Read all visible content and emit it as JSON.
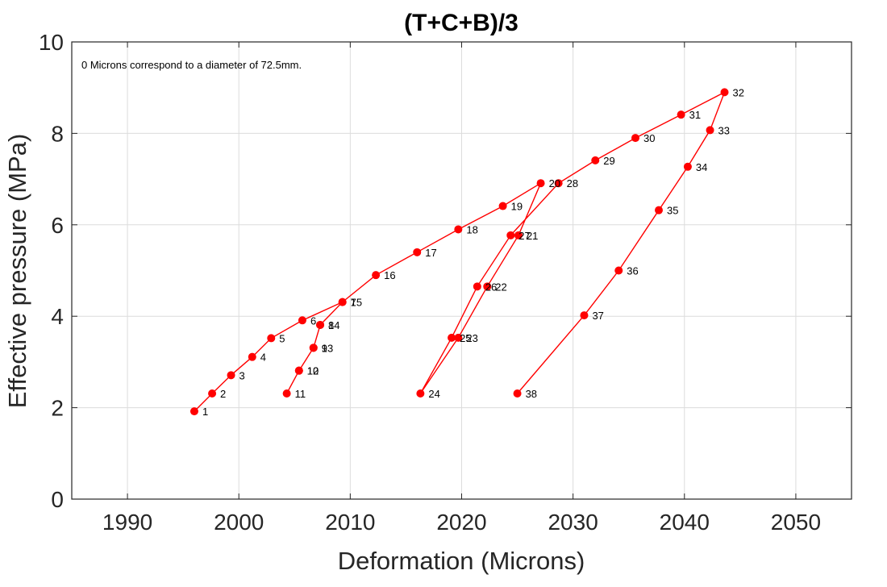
{
  "chart_data": {
    "type": "line",
    "title": "(T+C+B)/3",
    "xlabel": "Deformation (Microns)",
    "ylabel": "Effective pressure (MPa)",
    "xlim": [
      1985,
      2055
    ],
    "ylim": [
      0,
      10
    ],
    "xticks": [
      1990,
      2000,
      2010,
      2020,
      2030,
      2040,
      2050
    ],
    "yticks": [
      0,
      2,
      4,
      6,
      8,
      10
    ],
    "grid": true,
    "annotation": "0 Microns correspond to a diameter of 72.5mm.",
    "series_color": "#ff0000",
    "points": [
      {
        "label": "1",
        "x": 1996.0,
        "y": 1.92
      },
      {
        "label": "2",
        "x": 1997.6,
        "y": 2.31
      },
      {
        "label": "3",
        "x": 1999.3,
        "y": 2.71
      },
      {
        "label": "4",
        "x": 2001.2,
        "y": 3.11
      },
      {
        "label": "5",
        "x": 2002.9,
        "y": 3.52
      },
      {
        "label": "6",
        "x": 2005.7,
        "y": 3.91
      },
      {
        "label": "7",
        "x": 2009.3,
        "y": 4.31
      },
      {
        "label": "8",
        "x": 2007.3,
        "y": 3.81
      },
      {
        "label": "9",
        "x": 2006.7,
        "y": 3.31
      },
      {
        "label": "10",
        "x": 2005.4,
        "y": 2.81
      },
      {
        "label": "11",
        "x": 2004.3,
        "y": 2.31
      },
      {
        "label": "12",
        "x": 2005.4,
        "y": 2.81
      },
      {
        "label": "13",
        "x": 2006.7,
        "y": 3.31
      },
      {
        "label": "14",
        "x": 2007.3,
        "y": 3.81
      },
      {
        "label": "15",
        "x": 2009.3,
        "y": 4.31
      },
      {
        "label": "16",
        "x": 2012.3,
        "y": 4.9
      },
      {
        "label": "17",
        "x": 2016.0,
        "y": 5.4
      },
      {
        "label": "18",
        "x": 2019.7,
        "y": 5.9
      },
      {
        "label": "19",
        "x": 2023.7,
        "y": 6.41
      },
      {
        "label": "20",
        "x": 2027.1,
        "y": 6.91
      },
      {
        "label": "21",
        "x": 2025.1,
        "y": 5.77
      },
      {
        "label": "22",
        "x": 2022.3,
        "y": 4.65
      },
      {
        "label": "23",
        "x": 2019.7,
        "y": 3.53
      },
      {
        "label": "24",
        "x": 2016.3,
        "y": 2.31
      },
      {
        "label": "25",
        "x": 2019.1,
        "y": 3.53
      },
      {
        "label": "26",
        "x": 2021.4,
        "y": 4.65
      },
      {
        "label": "27",
        "x": 2024.4,
        "y": 5.77
      },
      {
        "label": "28",
        "x": 2028.7,
        "y": 6.91
      },
      {
        "label": "29",
        "x": 2032.0,
        "y": 7.41
      },
      {
        "label": "30",
        "x": 2035.6,
        "y": 7.9
      },
      {
        "label": "31",
        "x": 2039.7,
        "y": 8.41
      },
      {
        "label": "32",
        "x": 2043.6,
        "y": 8.9
      },
      {
        "label": "33",
        "x": 2042.3,
        "y": 8.07
      },
      {
        "label": "34",
        "x": 2040.3,
        "y": 7.27
      },
      {
        "label": "35",
        "x": 2037.7,
        "y": 6.32
      },
      {
        "label": "36",
        "x": 2034.1,
        "y": 5.0
      },
      {
        "label": "37",
        "x": 2031.0,
        "y": 4.02
      },
      {
        "label": "38",
        "x": 2025.0,
        "y": 2.31
      }
    ]
  }
}
